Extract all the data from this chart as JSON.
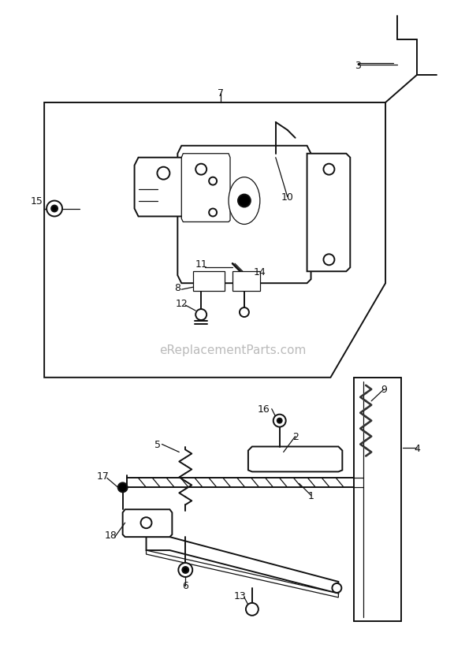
{
  "bg_color": "#ffffff",
  "watermark": "eReplacementParts.com",
  "watermark_color": "#bbbbbb",
  "watermark_fontsize": 11,
  "line_color": "#111111",
  "label_color": "#111111",
  "label_fontsize": 9,
  "fig_width": 5.9,
  "fig_height": 8.37,
  "dpi": 100
}
